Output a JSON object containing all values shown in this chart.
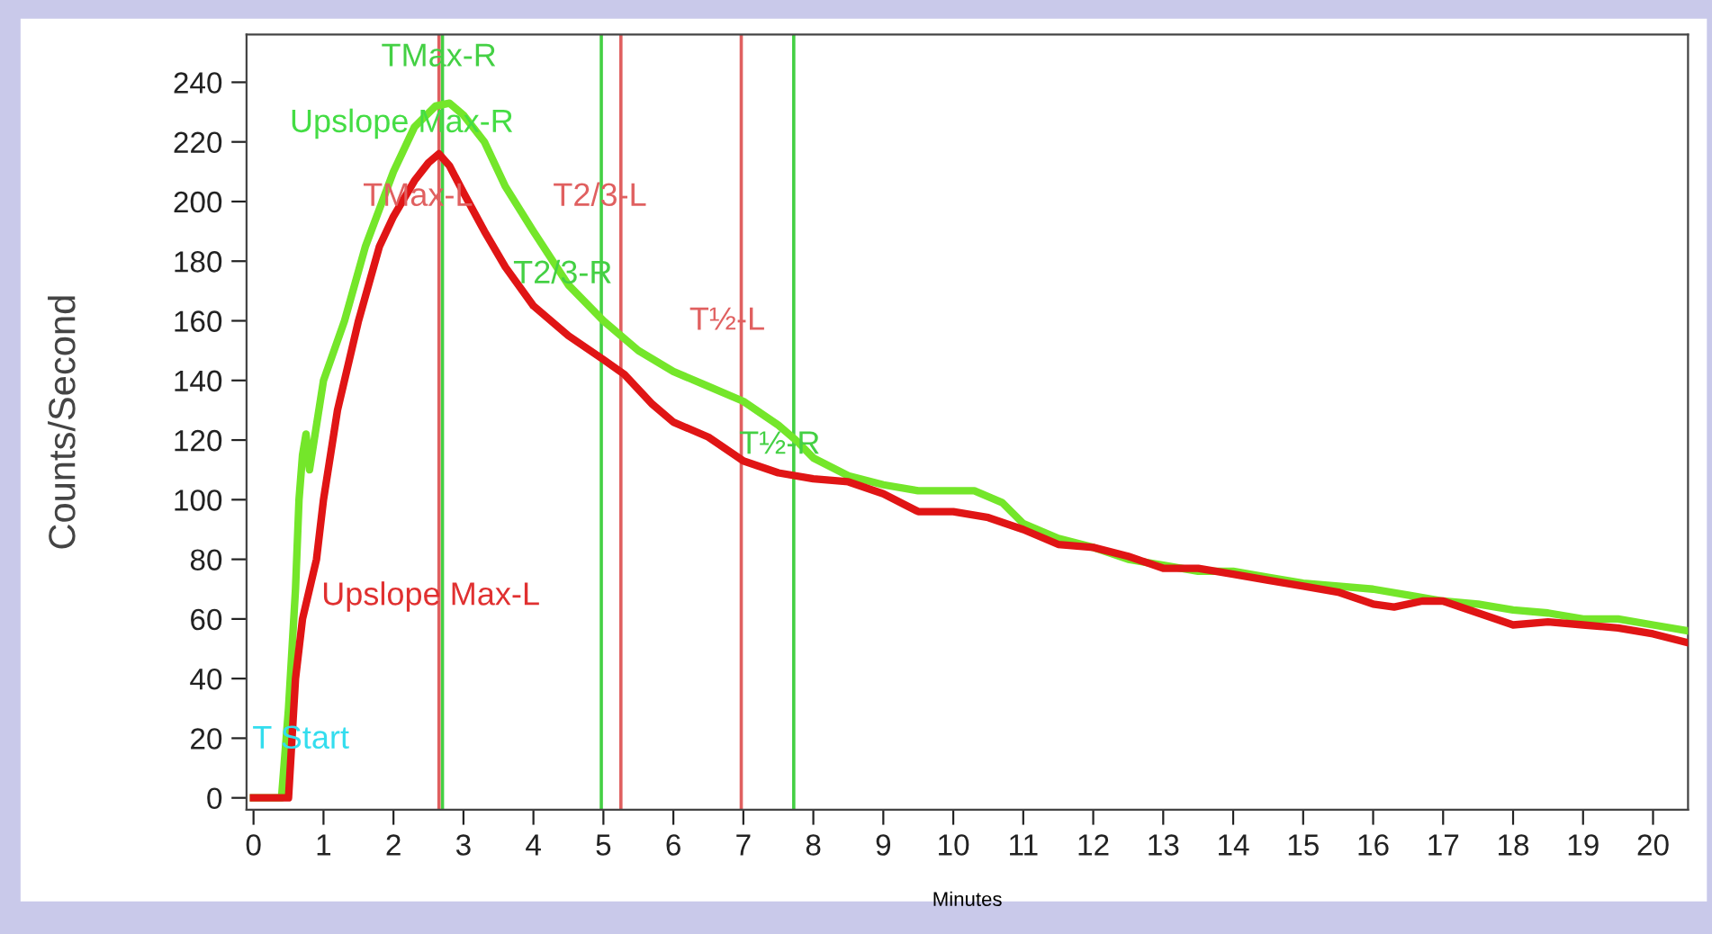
{
  "chart_data": {
    "type": "line",
    "xlabel": "Minutes",
    "ylabel": "Counts/Second",
    "xlim": [
      -0.1,
      20.5
    ],
    "ylim": [
      -4,
      256
    ],
    "xticks": [
      0,
      1,
      2,
      3,
      4,
      5,
      6,
      7,
      8,
      9,
      10,
      11,
      12,
      13,
      14,
      15,
      16,
      17,
      18,
      19,
      20
    ],
    "yticks": [
      0,
      20,
      40,
      60,
      80,
      100,
      120,
      140,
      160,
      180,
      200,
      220,
      240
    ],
    "grid": false,
    "legend": false,
    "line_style": "solid",
    "marker": "none",
    "series": [
      {
        "color": "#74e62a",
        "x": [
          0,
          0.4,
          0.5,
          0.6,
          0.65,
          0.7,
          0.75,
          0.8,
          1.0,
          1.3,
          1.6,
          2.0,
          2.3,
          2.6,
          2.8,
          3.0,
          3.3,
          3.6,
          4.0,
          4.5,
          5.0,
          5.5,
          6.0,
          6.5,
          7.0,
          7.5,
          7.75,
          8.0,
          8.5,
          9.0,
          9.5,
          10,
          10.3,
          10.7,
          11,
          11.5,
          12,
          12.5,
          13,
          13.5,
          14,
          14.5,
          15,
          15.5,
          16,
          16.5,
          17,
          17.5,
          18,
          18.5,
          19,
          19.5,
          20,
          20.5
        ],
        "values": [
          0,
          0,
          30,
          70,
          100,
          115,
          122,
          110,
          140,
          160,
          185,
          210,
          225,
          232,
          233,
          229,
          220,
          205,
          190,
          172,
          160,
          150,
          143,
          138,
          133,
          125,
          120,
          114,
          108,
          105,
          103,
          103,
          103,
          99,
          92,
          87,
          84,
          80,
          78,
          76,
          76,
          74,
          72,
          71,
          70,
          68,
          66,
          65,
          63,
          62,
          60,
          60,
          58,
          56
        ]
      },
      {
        "color": "#e01515",
        "x": [
          0,
          0.5,
          0.55,
          0.6,
          0.7,
          0.8,
          0.9,
          1.0,
          1.2,
          1.5,
          1.8,
          2.0,
          2.3,
          2.5,
          2.65,
          2.8,
          3.0,
          3.3,
          3.6,
          4.0,
          4.5,
          5.0,
          5.3,
          5.7,
          6.0,
          6.5,
          7.0,
          7.5,
          8.0,
          8.5,
          9.0,
          9.5,
          10,
          10.5,
          11,
          11.5,
          12,
          12.5,
          13,
          13.5,
          14,
          14.5,
          15,
          15.5,
          16,
          16.3,
          16.7,
          17,
          17.5,
          18,
          18.5,
          19,
          19.5,
          20,
          20.5
        ],
        "values": [
          0,
          0,
          20,
          40,
          60,
          70,
          80,
          100,
          130,
          160,
          185,
          195,
          207,
          213,
          216,
          212,
          203,
          190,
          178,
          165,
          155,
          147,
          142,
          132,
          126,
          121,
          113,
          109,
          107,
          106,
          102,
          96,
          96,
          94,
          90,
          85,
          84,
          81,
          77,
          77,
          75,
          73,
          71,
          69,
          65,
          64,
          66,
          66,
          62,
          58,
          59,
          58,
          57,
          55,
          52
        ]
      }
    ],
    "ref_lines": [
      {
        "axis": "x",
        "value": 2.7,
        "color": "#44d044",
        "label": "TMax-R"
      },
      {
        "axis": "x",
        "value": 2.65,
        "color": "#e06060",
        "label": "TMax-L"
      },
      {
        "axis": "x",
        "value": 4.97,
        "color": "#44d044",
        "label": "T2/3-R"
      },
      {
        "axis": "x",
        "value": 5.25,
        "color": "#e06060",
        "label": "T2/3-L"
      },
      {
        "axis": "x",
        "value": 6.97,
        "color": "#e06060",
        "label": "T½-L"
      },
      {
        "axis": "x",
        "value": 7.72,
        "color": "#44d044",
        "label": "T½-R"
      }
    ],
    "annotations": [
      "Upslope Max-R",
      "Upslope Max-L",
      "T Start"
    ]
  }
}
